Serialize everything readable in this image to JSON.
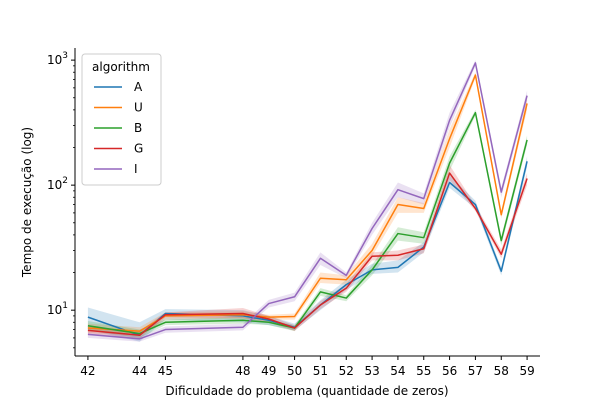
{
  "chart_data": {
    "type": "line",
    "xlabel": "Dificuldade do problema (quantidade de zeros)",
    "ylabel": "Tempo de execução (log)",
    "yscale": "log",
    "ylim": [
      4.3,
      1250
    ],
    "x_ticks": [
      "42",
      "44",
      "45",
      "48",
      "49",
      "50",
      "51",
      "52",
      "53",
      "54",
      "55",
      "56",
      "57",
      "58",
      "59"
    ],
    "y_ticks": [
      {
        "value": 10,
        "base": "10",
        "exp": "1"
      },
      {
        "value": 100,
        "base": "10",
        "exp": "2"
      },
      {
        "value": 1000,
        "base": "10",
        "exp": "3"
      }
    ],
    "legend": {
      "title": "algorithm",
      "placement": "top-left"
    },
    "series": [
      {
        "name": "A",
        "color": "#1f77b4",
        "values": [
          8.8,
          6.3,
          9.4,
          9.0,
          8.3,
          7.3,
          11.0,
          16.0,
          21.0,
          22.0,
          32.0,
          105.0,
          70.0,
          20.5,
          155.0
        ],
        "lower": [
          7.0,
          5.6,
          8.4,
          8.0,
          7.6,
          6.9,
          10.0,
          14.5,
          19.5,
          20.0,
          29.0,
          95.0,
          65.0,
          19.0,
          140.0
        ],
        "upper": [
          10.5,
          8.0,
          10.2,
          10.0,
          9.0,
          7.8,
          12.0,
          17.5,
          23.5,
          25.0,
          35.0,
          120.0,
          75.0,
          22.0,
          170.0
        ]
      },
      {
        "name": "U",
        "color": "#ff7f0e",
        "values": [
          7.2,
          6.8,
          9.0,
          9.2,
          8.8,
          8.9,
          18.0,
          17.5,
          30.0,
          70.0,
          65.0,
          235.0,
          760.0,
          58.0,
          450.0
        ],
        "lower": [
          6.6,
          6.2,
          8.4,
          8.6,
          8.4,
          8.4,
          16.5,
          16.0,
          27.0,
          60.0,
          60.0,
          200.0,
          720.0,
          54.0,
          400.0
        ],
        "upper": [
          7.8,
          7.3,
          9.6,
          9.8,
          9.2,
          9.4,
          20.0,
          19.0,
          34.0,
          80.0,
          72.0,
          280.0,
          800.0,
          62.0,
          500.0
        ]
      },
      {
        "name": "B",
        "color": "#2ca02c",
        "values": [
          7.5,
          6.5,
          8.0,
          8.3,
          8.0,
          7.2,
          14.0,
          12.5,
          21.0,
          41.0,
          38.0,
          150.0,
          380.0,
          36.0,
          230.0
        ],
        "lower": [
          6.9,
          6.0,
          7.6,
          7.8,
          7.6,
          6.8,
          13.0,
          11.8,
          19.0,
          36.0,
          34.0,
          130.0,
          360.0,
          33.0,
          210.0
        ],
        "upper": [
          8.2,
          7.0,
          8.4,
          8.8,
          8.4,
          7.6,
          15.0,
          13.2,
          23.0,
          46.0,
          42.0,
          170.0,
          400.0,
          39.0,
          250.0
        ]
      },
      {
        "name": "G",
        "color": "#d62728",
        "values": [
          6.9,
          6.3,
          9.2,
          9.4,
          8.5,
          7.2,
          11.0,
          15.0,
          27.0,
          27.5,
          31.0,
          125.0,
          65.0,
          28.0,
          113.0
        ],
        "lower": [
          6.4,
          5.9,
          8.8,
          8.6,
          8.0,
          6.8,
          10.2,
          14.0,
          25.0,
          25.0,
          28.5,
          110.0,
          62.0,
          26.0,
          100.0
        ],
        "upper": [
          7.4,
          6.8,
          9.6,
          10.4,
          9.0,
          7.6,
          11.8,
          16.2,
          29.0,
          30.0,
          33.5,
          145.0,
          69.0,
          30.5,
          125.0
        ]
      },
      {
        "name": "I",
        "color": "#9467bd",
        "values": [
          6.4,
          5.9,
          7.0,
          7.3,
          11.3,
          12.8,
          26.0,
          19.0,
          45.0,
          92.0,
          78.0,
          330.0,
          950.0,
          88.0,
          520.0
        ],
        "lower": [
          6.0,
          5.6,
          6.6,
          6.9,
          10.5,
          11.8,
          23.0,
          18.0,
          40.0,
          80.0,
          70.0,
          290.0,
          900.0,
          80.0,
          470.0
        ],
        "upper": [
          6.8,
          6.2,
          7.4,
          7.8,
          12.1,
          13.8,
          29.0,
          20.0,
          50.0,
          105.0,
          86.0,
          380.0,
          1000.0,
          96.0,
          570.0
        ]
      }
    ]
  }
}
